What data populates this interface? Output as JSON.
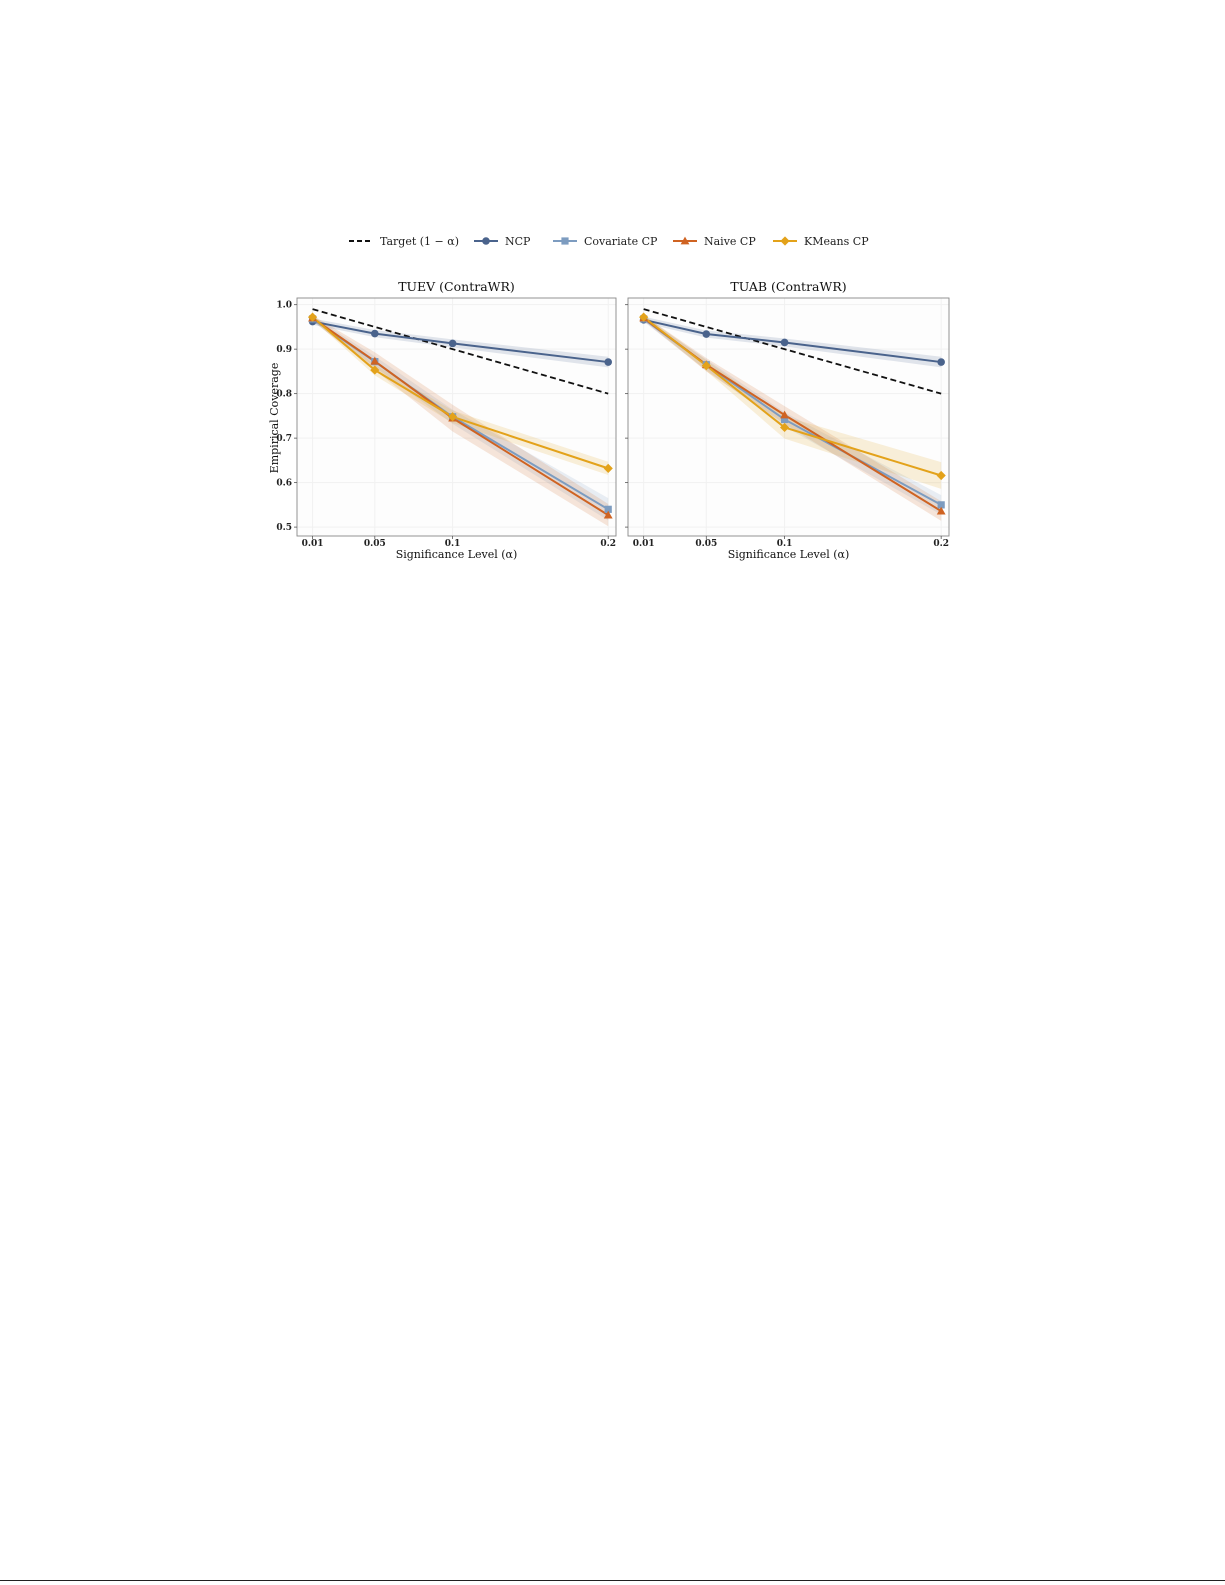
{
  "legend": [
    {
      "key": "target",
      "label": "Target (1 − α)",
      "color": "#111111",
      "dash": true,
      "marker": "none"
    },
    {
      "key": "ncp",
      "label": "NCP",
      "color": "#4a638c",
      "marker": "circle"
    },
    {
      "key": "covariate",
      "label": "Covariate CP",
      "color": "#7d9cc0",
      "marker": "square"
    },
    {
      "key": "naive",
      "label": "Naive CP",
      "color": "#cf6322",
      "marker": "triangle"
    },
    {
      "key": "kmeans",
      "label": "KMeans CP",
      "color": "#e3a21a",
      "marker": "diamond"
    }
  ],
  "chart_data": [
    {
      "type": "line",
      "title": "TUEV (ContraWR)",
      "xlabel": "Significance Level (α)",
      "ylabel": "Empirical Coverage",
      "x": [
        0.01,
        0.05,
        0.1,
        0.2
      ],
      "x_tick_labels": [
        "0.01",
        "0.05",
        "0.1",
        "0.2"
      ],
      "y_ticks": [
        0.5,
        0.6,
        0.7,
        0.8,
        0.9,
        1.0
      ],
      "y_tick_labels": [
        "0.5",
        "0.6",
        "0.7",
        "0.8",
        "0.9",
        "1.0"
      ],
      "ylim": [
        0.48,
        1.015
      ],
      "xlim": [
        0.0,
        0.205
      ],
      "series": [
        {
          "key": "target",
          "values": [
            0.99,
            0.95,
            0.9,
            0.8
          ]
        },
        {
          "key": "ncp",
          "values": [
            0.962,
            0.935,
            0.913,
            0.871
          ],
          "band": [
            0.007,
            0.008,
            0.009,
            0.012
          ]
        },
        {
          "key": "covariate",
          "values": [
            0.968,
            0.872,
            0.748,
            0.54
          ],
          "band": [
            0.006,
            0.012,
            0.016,
            0.025
          ]
        },
        {
          "key": "naive",
          "values": [
            0.97,
            0.873,
            0.745,
            0.527
          ],
          "band": [
            0.006,
            0.02,
            0.03,
            0.025
          ]
        },
        {
          "key": "kmeans",
          "values": [
            0.972,
            0.853,
            0.748,
            0.632
          ],
          "band": [
            0.005,
            0.012,
            0.014,
            0.015
          ]
        }
      ]
    },
    {
      "type": "line",
      "title": "TUAB (ContraWR)",
      "xlabel": "Significance Level (α)",
      "ylabel": "",
      "x": [
        0.01,
        0.05,
        0.1,
        0.2
      ],
      "x_tick_labels": [
        "0.01",
        "0.05",
        "0.1",
        "0.2"
      ],
      "y_ticks": [
        0.5,
        0.6,
        0.7,
        0.8,
        0.9,
        1.0
      ],
      "y_tick_labels": [],
      "ylim": [
        0.48,
        1.015
      ],
      "xlim": [
        0.0,
        0.205
      ],
      "series": [
        {
          "key": "target",
          "values": [
            0.99,
            0.95,
            0.9,
            0.8
          ]
        },
        {
          "key": "ncp",
          "values": [
            0.966,
            0.934,
            0.915,
            0.871
          ],
          "band": [
            0.007,
            0.008,
            0.009,
            0.012
          ]
        },
        {
          "key": "covariate",
          "values": [
            0.968,
            0.865,
            0.742,
            0.55
          ],
          "band": [
            0.006,
            0.012,
            0.016,
            0.022
          ]
        },
        {
          "key": "naive",
          "values": [
            0.97,
            0.865,
            0.752,
            0.536
          ],
          "band": [
            0.006,
            0.015,
            0.02,
            0.022
          ]
        },
        {
          "key": "kmeans",
          "values": [
            0.972,
            0.863,
            0.724,
            0.616
          ],
          "band": [
            0.005,
            0.012,
            0.025,
            0.03
          ]
        }
      ]
    }
  ]
}
